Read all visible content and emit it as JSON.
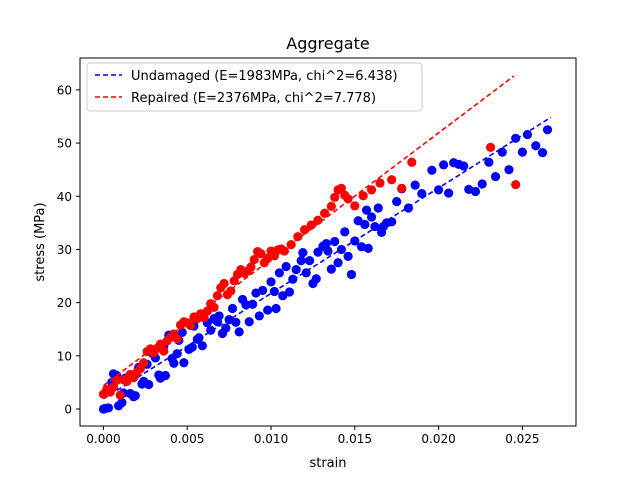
{
  "chart_data": {
    "type": "scatter",
    "title": "Aggregate",
    "xlabel": "strain",
    "ylabel": "stress (MPa)",
    "xlim": [
      -0.0014,
      0.0282
    ],
    "ylim": [
      -3.2,
      66.0
    ],
    "xticks": [
      0.0,
      0.005,
      0.01,
      0.015,
      0.02,
      0.025
    ],
    "xtick_labels": [
      "0.000",
      "0.005",
      "0.010",
      "0.015",
      "0.020",
      "0.025"
    ],
    "yticks": [
      0,
      10,
      20,
      30,
      40,
      50,
      60
    ],
    "ytick_labels": [
      "0",
      "10",
      "20",
      "30",
      "40",
      "50",
      "60"
    ],
    "grid": false,
    "legend_position": "upper-left",
    "series": [
      {
        "name": "Undamaged (E=1983MPa, chi^2=6.438)",
        "color": "#0000ff",
        "fit": {
          "slope": 1983,
          "intercept": 1.9,
          "x_range": [
            0.0,
            0.0267
          ],
          "style": "dashed"
        },
        "points": [
          [
            0.0,
            0.0
          ],
          [
            0.0001,
            0.1
          ],
          [
            0.0003,
            0.2
          ],
          [
            0.0005,
            5.0
          ],
          [
            0.0006,
            6.6
          ],
          [
            0.0008,
            6.3
          ],
          [
            0.0009,
            0.6
          ],
          [
            0.0011,
            1.2
          ],
          [
            0.0012,
            3.0
          ],
          [
            0.0013,
            5.8
          ],
          [
            0.0014,
            5.4
          ],
          [
            0.0016,
            2.9
          ],
          [
            0.0018,
            2.3
          ],
          [
            0.0019,
            2.5
          ],
          [
            0.0021,
            7.8
          ],
          [
            0.0023,
            4.7
          ],
          [
            0.0024,
            5.2
          ],
          [
            0.0026,
            8.4
          ],
          [
            0.0027,
            4.6
          ],
          [
            0.0029,
            10.5
          ],
          [
            0.0031,
            9.6
          ],
          [
            0.0033,
            6.4
          ],
          [
            0.0034,
            5.8
          ],
          [
            0.0036,
            11.8
          ],
          [
            0.0037,
            6.3
          ],
          [
            0.0039,
            13.9
          ],
          [
            0.0041,
            9.5
          ],
          [
            0.0042,
            8.6
          ],
          [
            0.0044,
            10.4
          ],
          [
            0.0045,
            12.9
          ],
          [
            0.0047,
            14.4
          ],
          [
            0.0048,
            8.7
          ],
          [
            0.0051,
            11.2
          ],
          [
            0.0053,
            11.6
          ],
          [
            0.0054,
            15.6
          ],
          [
            0.0056,
            13.1
          ],
          [
            0.0057,
            13.4
          ],
          [
            0.0059,
            11.9
          ],
          [
            0.0062,
            16.2
          ],
          [
            0.0064,
            14.8
          ],
          [
            0.0066,
            17.0
          ],
          [
            0.0068,
            16.4
          ],
          [
            0.0069,
            17.5
          ],
          [
            0.0071,
            14.2
          ],
          [
            0.0073,
            15.2
          ],
          [
            0.0075,
            16.8
          ],
          [
            0.0077,
            18.9
          ],
          [
            0.0079,
            16.3
          ],
          [
            0.0081,
            14.5
          ],
          [
            0.0083,
            20.6
          ],
          [
            0.0085,
            19.6
          ],
          [
            0.0087,
            16.4
          ],
          [
            0.0089,
            19.7
          ],
          [
            0.0091,
            21.8
          ],
          [
            0.0093,
            17.5
          ],
          [
            0.0095,
            22.3
          ],
          [
            0.0098,
            18.6
          ],
          [
            0.01,
            23.9
          ],
          [
            0.0102,
            22.1
          ],
          [
            0.0103,
            18.9
          ],
          [
            0.0105,
            25.6
          ],
          [
            0.0107,
            21.3
          ],
          [
            0.0109,
            26.8
          ],
          [
            0.0111,
            22.0
          ],
          [
            0.0113,
            24.4
          ],
          [
            0.0115,
            26.2
          ],
          [
            0.0118,
            27.9
          ],
          [
            0.0119,
            29.4
          ],
          [
            0.0121,
            25.6
          ],
          [
            0.0123,
            27.9
          ],
          [
            0.0125,
            23.6
          ],
          [
            0.0127,
            24.5
          ],
          [
            0.0128,
            29.5
          ],
          [
            0.0131,
            30.6
          ],
          [
            0.0133,
            31.1
          ],
          [
            0.0134,
            29.7
          ],
          [
            0.0136,
            26.3
          ],
          [
            0.0138,
            31.5
          ],
          [
            0.014,
            27.5
          ],
          [
            0.0142,
            30.0
          ],
          [
            0.0144,
            33.3
          ],
          [
            0.0146,
            28.7
          ],
          [
            0.0148,
            25.3
          ],
          [
            0.015,
            31.6
          ],
          [
            0.0152,
            35.4
          ],
          [
            0.0154,
            30.5
          ],
          [
            0.0156,
            34.7
          ],
          [
            0.0157,
            37.4
          ],
          [
            0.0158,
            30.2
          ],
          [
            0.016,
            36.1
          ],
          [
            0.0162,
            34.3
          ],
          [
            0.0164,
            37.8
          ],
          [
            0.0166,
            33.2
          ],
          [
            0.0167,
            34.3
          ],
          [
            0.0169,
            35.0
          ],
          [
            0.0172,
            35.2
          ],
          [
            0.0175,
            39.0
          ],
          [
            0.0178,
            41.4
          ],
          [
            0.0182,
            37.8
          ],
          [
            0.0186,
            42.1
          ],
          [
            0.019,
            40.5
          ],
          [
            0.0196,
            44.9
          ],
          [
            0.02,
            41.2
          ],
          [
            0.0203,
            45.9
          ],
          [
            0.0206,
            40.6
          ],
          [
            0.0209,
            46.3
          ],
          [
            0.0212,
            46.0
          ],
          [
            0.0215,
            45.7
          ],
          [
            0.0218,
            41.3
          ],
          [
            0.0222,
            40.9
          ],
          [
            0.0226,
            42.3
          ],
          [
            0.023,
            46.4
          ],
          [
            0.0234,
            43.7
          ],
          [
            0.0238,
            48.3
          ],
          [
            0.0242,
            45.0
          ],
          [
            0.0246,
            50.9
          ],
          [
            0.025,
            48.3
          ],
          [
            0.0253,
            51.6
          ],
          [
            0.0258,
            49.5
          ],
          [
            0.0262,
            48.2
          ],
          [
            0.0265,
            52.5
          ]
        ]
      },
      {
        "name": "Repaired (E=2376MPa, chi^2=7.778)",
        "color": "#ff0000",
        "fit": {
          "slope": 2376,
          "intercept": 4.4,
          "x_range": [
            0.0,
            0.0245
          ],
          "style": "dashed"
        },
        "points": [
          [
            0.0,
            2.8
          ],
          [
            0.0002,
            3.7
          ],
          [
            0.0004,
            3.2
          ],
          [
            0.0006,
            4.1
          ],
          [
            0.0008,
            5.4
          ],
          [
            0.001,
            2.6
          ],
          [
            0.0012,
            5.5
          ],
          [
            0.0014,
            5.2
          ],
          [
            0.0016,
            6.5
          ],
          [
            0.0018,
            5.9
          ],
          [
            0.002,
            6.9
          ],
          [
            0.0022,
            7.6
          ],
          [
            0.0024,
            8.7
          ],
          [
            0.0026,
            10.8
          ],
          [
            0.0028,
            11.3
          ],
          [
            0.003,
            10.6
          ],
          [
            0.0032,
            11.4
          ],
          [
            0.0034,
            12.2
          ],
          [
            0.0036,
            10.9
          ],
          [
            0.0038,
            12.8
          ],
          [
            0.004,
            13.5
          ],
          [
            0.0042,
            14.1
          ],
          [
            0.0044,
            13.2
          ],
          [
            0.0046,
            15.8
          ],
          [
            0.0048,
            16.4
          ],
          [
            0.005,
            16.2
          ],
          [
            0.0052,
            15.7
          ],
          [
            0.0054,
            17.3
          ],
          [
            0.0056,
            17.0
          ],
          [
            0.0058,
            17.9
          ],
          [
            0.006,
            17.2
          ],
          [
            0.0062,
            18.4
          ],
          [
            0.0064,
            19.8
          ],
          [
            0.0066,
            19.1
          ],
          [
            0.0068,
            21.3
          ],
          [
            0.007,
            22.8
          ],
          [
            0.0072,
            23.6
          ],
          [
            0.0074,
            21.5
          ],
          [
            0.0076,
            22.2
          ],
          [
            0.0078,
            24.1
          ],
          [
            0.008,
            25.3
          ],
          [
            0.0082,
            26.2
          ],
          [
            0.0084,
            25.5
          ],
          [
            0.0086,
            25.9
          ],
          [
            0.0088,
            26.7
          ],
          [
            0.009,
            28.1
          ],
          [
            0.0092,
            29.6
          ],
          [
            0.0094,
            29.2
          ],
          [
            0.0096,
            27.5
          ],
          [
            0.0098,
            28.3
          ],
          [
            0.01,
            29.7
          ],
          [
            0.0102,
            28.8
          ],
          [
            0.0104,
            29.9
          ],
          [
            0.0106,
            30.1
          ],
          [
            0.0108,
            29.7
          ],
          [
            0.0112,
            30.9
          ],
          [
            0.0116,
            32.4
          ],
          [
            0.012,
            33.7
          ],
          [
            0.0124,
            34.6
          ],
          [
            0.0128,
            35.5
          ],
          [
            0.0132,
            36.8
          ],
          [
            0.0136,
            38.1
          ],
          [
            0.0138,
            39.8
          ],
          [
            0.014,
            41.2
          ],
          [
            0.0142,
            41.5
          ],
          [
            0.0144,
            40.2
          ],
          [
            0.0146,
            39.5
          ],
          [
            0.015,
            38.2
          ],
          [
            0.0155,
            40.1
          ],
          [
            0.016,
            41.2
          ],
          [
            0.0165,
            42.5
          ],
          [
            0.0172,
            43.1
          ],
          [
            0.0178,
            41.5
          ],
          [
            0.0184,
            46.4
          ],
          [
            0.0231,
            49.2
          ],
          [
            0.0246,
            42.2
          ]
        ]
      }
    ]
  }
}
